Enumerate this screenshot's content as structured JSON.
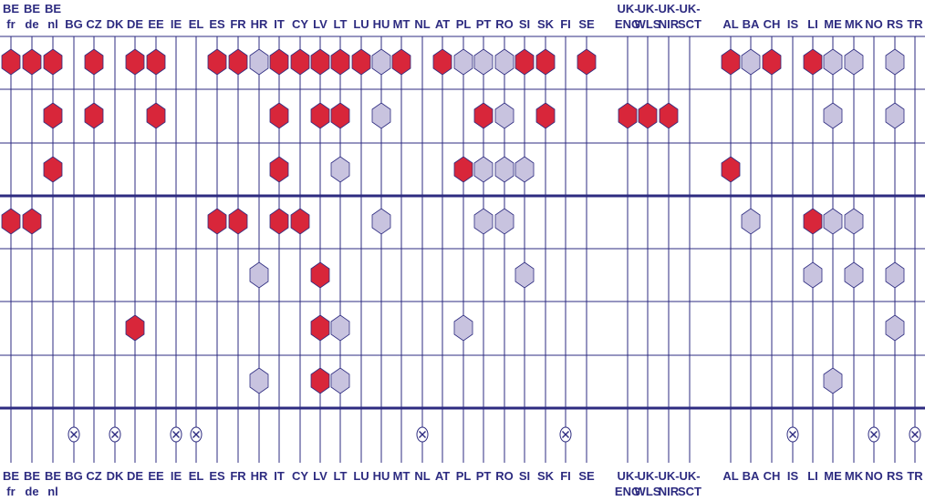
{
  "countries": [
    {
      "top": "BE",
      "bottom": "fr"
    },
    {
      "top": "BE",
      "bottom": "de"
    },
    {
      "top": "BE",
      "bottom": "nl"
    },
    {
      "top": "BG",
      "bottom": ""
    },
    {
      "top": "CZ",
      "bottom": ""
    },
    {
      "top": "DK",
      "bottom": ""
    },
    {
      "top": "DE",
      "bottom": ""
    },
    {
      "top": "EE",
      "bottom": ""
    },
    {
      "top": "IE",
      "bottom": ""
    },
    {
      "top": "EL",
      "bottom": ""
    },
    {
      "top": "ES",
      "bottom": ""
    },
    {
      "top": "FR",
      "bottom": ""
    },
    {
      "top": "HR",
      "bottom": ""
    },
    {
      "top": "IT",
      "bottom": ""
    },
    {
      "top": "CY",
      "bottom": ""
    },
    {
      "top": "LV",
      "bottom": ""
    },
    {
      "top": "LT",
      "bottom": ""
    },
    {
      "top": "LU",
      "bottom": ""
    },
    {
      "top": "HU",
      "bottom": ""
    },
    {
      "top": "MT",
      "bottom": ""
    },
    {
      "top": "NL",
      "bottom": ""
    },
    {
      "top": "AT",
      "bottom": ""
    },
    {
      "top": "PL",
      "bottom": ""
    },
    {
      "top": "PT",
      "bottom": ""
    },
    {
      "top": "RO",
      "bottom": ""
    },
    {
      "top": "SI",
      "bottom": ""
    },
    {
      "top": "SK",
      "bottom": ""
    },
    {
      "top": "FI",
      "bottom": ""
    },
    {
      "top": "SE",
      "bottom": ""
    },
    {
      "top": "UK-",
      "bottom": "ENG"
    },
    {
      "top": "UK-",
      "bottom": "WLS"
    },
    {
      "top": "UK-",
      "bottom": "NIR"
    },
    {
      "top": "UK-",
      "bottom": "SCT"
    },
    {
      "top": "AL",
      "bottom": ""
    },
    {
      "top": "BA",
      "bottom": ""
    },
    {
      "top": "CH",
      "bottom": ""
    },
    {
      "top": "IS",
      "bottom": ""
    },
    {
      "top": "LI",
      "bottom": ""
    },
    {
      "top": "ME",
      "bottom": ""
    },
    {
      "top": "MK",
      "bottom": ""
    },
    {
      "top": "NO",
      "bottom": ""
    },
    {
      "top": "RS",
      "bottom": ""
    },
    {
      "top": "TR",
      "bottom": ""
    }
  ],
  "colors": {
    "line": "#2d2b80",
    "red": "#d8263a",
    "lilac": "#c8c3df",
    "background": "#ffffff"
  },
  "symbols": {
    "red": "red-hexagon",
    "lilac": "lilac-hexagon",
    "none": "crossed-circle"
  },
  "rows": [
    {
      "red": [
        "BE fr",
        "BE de",
        "BE nl",
        "CZ",
        "DE",
        "EE",
        "ES",
        "FR",
        "IT",
        "CY",
        "LV",
        "LT",
        "LU",
        "MT",
        "AT",
        "SI",
        "SK",
        "SE",
        "AL",
        "CH",
        "LI"
      ],
      "lilac": [
        "HR",
        "HU",
        "PL",
        "PT",
        "RO",
        "BA",
        "ME",
        "MK",
        "RS"
      ]
    },
    {
      "red": [
        "BE nl",
        "CZ",
        "EE",
        "IT",
        "LV",
        "LT",
        "PT",
        "SK",
        "UK-ENG",
        "UK-WLS",
        "UK-NIR"
      ],
      "lilac": [
        "HU",
        "RO",
        "ME",
        "RS"
      ]
    },
    {
      "red": [
        "BE nl",
        "IT",
        "PL",
        "AL"
      ],
      "lilac": [
        "LT",
        "PT",
        "RO",
        "SI"
      ]
    },
    {
      "red": [
        "BE fr",
        "BE de",
        "ES",
        "FR",
        "IT",
        "CY",
        "LI"
      ],
      "lilac": [
        "HU",
        "PT",
        "RO",
        "BA",
        "ME",
        "MK"
      ]
    },
    {
      "red": [
        "LV"
      ],
      "lilac": [
        "HR",
        "SI",
        "LI",
        "MK",
        "RS"
      ]
    },
    {
      "red": [
        "DE",
        "LV"
      ],
      "lilac": [
        "LT",
        "PL",
        "RS"
      ]
    },
    {
      "red": [
        "LV"
      ],
      "lilac": [
        "HR",
        "LT",
        "ME"
      ]
    }
  ],
  "none_row": [
    "BG",
    "DK",
    "IE",
    "EL",
    "NL",
    "FI",
    "IS",
    "NO",
    "TR"
  ]
}
